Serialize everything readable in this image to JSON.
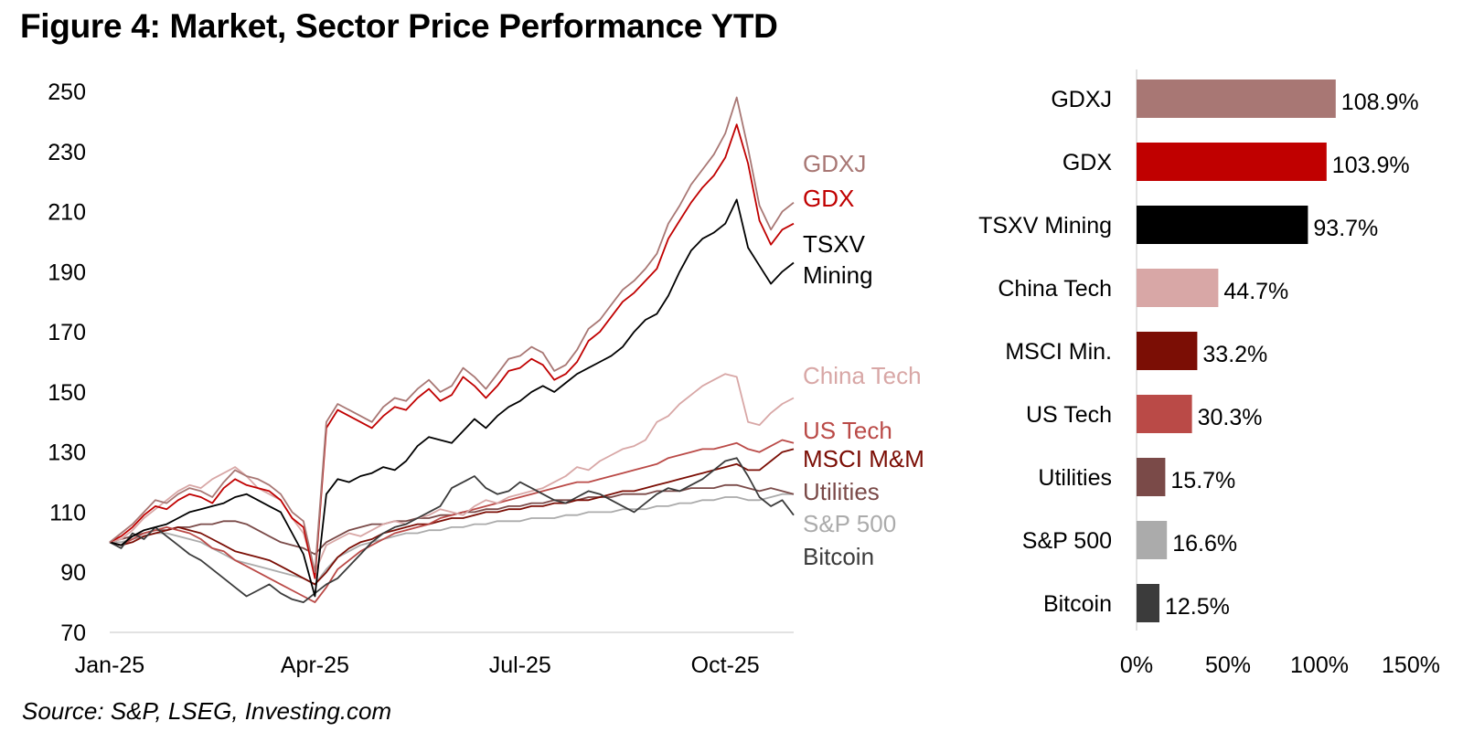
{
  "title": "Figure 4: Market, Sector Price Performance YTD",
  "source": "Source: S&P, LSEG, Investing.com",
  "chart_data": [
    {
      "type": "line",
      "title": "",
      "xlabel": "",
      "ylabel": "",
      "ylim": [
        70,
        250
      ],
      "yticks": [
        70,
        90,
        110,
        130,
        150,
        170,
        190,
        210,
        230,
        250
      ],
      "x_ticks": [
        "Jan-25",
        "Apr-25",
        "Jul-25",
        "Oct-25"
      ],
      "x_tick_index": [
        0,
        18,
        36,
        54
      ],
      "grid": false,
      "series": [
        {
          "name": "GDXJ",
          "label_lines": [
            "GDXJ"
          ],
          "color": "#A87774",
          "values": [
            100,
            103,
            106,
            110,
            114,
            113,
            116,
            118,
            117,
            115,
            120,
            124,
            122,
            121,
            119,
            116,
            110,
            107,
            90,
            140,
            146,
            144,
            142,
            140,
            145,
            148,
            147,
            151,
            154,
            150,
            152,
            158,
            155,
            151,
            156,
            161,
            162,
            165,
            163,
            157,
            159,
            164,
            171,
            174,
            179,
            184,
            187,
            191,
            196,
            206,
            212,
            219,
            224,
            229,
            236,
            248,
            231,
            212,
            204,
            210,
            213
          ]
        },
        {
          "name": "GDX",
          "label_lines": [
            "GDX"
          ],
          "color": "#C00000",
          "values": [
            100,
            102,
            105,
            109,
            112,
            111,
            114,
            116,
            115,
            113,
            118,
            121,
            119,
            118,
            117,
            114,
            108,
            105,
            88,
            138,
            144,
            142,
            140,
            138,
            142,
            145,
            144,
            148,
            151,
            147,
            149,
            155,
            152,
            148,
            152,
            157,
            158,
            161,
            159,
            154,
            156,
            160,
            167,
            170,
            175,
            180,
            183,
            187,
            191,
            201,
            207,
            213,
            218,
            222,
            228,
            239,
            226,
            207,
            199,
            204,
            206
          ]
        },
        {
          "name": "TSXV Mining",
          "label_lines": [
            "TSXV",
            "Mining"
          ],
          "color": "#000000",
          "values": [
            100,
            99,
            102,
            104,
            105,
            106,
            108,
            110,
            111,
            112,
            113,
            115,
            116,
            114,
            112,
            110,
            103,
            96,
            82,
            116,
            121,
            120,
            122,
            123,
            125,
            124,
            127,
            132,
            135,
            134,
            133,
            137,
            141,
            138,
            142,
            145,
            147,
            150,
            152,
            150,
            153,
            156,
            158,
            160,
            162,
            165,
            170,
            174,
            176,
            182,
            190,
            197,
            201,
            203,
            206,
            214,
            198,
            192,
            186,
            190,
            193
          ]
        },
        {
          "name": "China Tech",
          "label_lines": [
            "China Tech"
          ],
          "color": "#D8A7A6",
          "values": [
            100,
            101,
            104,
            108,
            111,
            114,
            117,
            119,
            118,
            121,
            123,
            125,
            122,
            118,
            116,
            114,
            108,
            103,
            90,
            99,
            101,
            103,
            102,
            104,
            106,
            107,
            106,
            108,
            109,
            111,
            110,
            109,
            112,
            114,
            113,
            115,
            116,
            117,
            118,
            120,
            122,
            125,
            124,
            127,
            129,
            131,
            132,
            134,
            140,
            142,
            146,
            149,
            152,
            154,
            156,
            155,
            140,
            139,
            143,
            146,
            148
          ]
        },
        {
          "name": "US Tech",
          "label_lines": [
            "US Tech"
          ],
          "color": "#BA4A47",
          "values": [
            100,
            99,
            101,
            103,
            104,
            105,
            104,
            103,
            101,
            98,
            97,
            94,
            92,
            90,
            88,
            86,
            84,
            82,
            80,
            85,
            91,
            94,
            97,
            99,
            101,
            103,
            104,
            105,
            106,
            108,
            109,
            110,
            111,
            112,
            113,
            114,
            115,
            116,
            117,
            118,
            119,
            120,
            120,
            121,
            122,
            123,
            124,
            125,
            126,
            128,
            129,
            130,
            131,
            131,
            132,
            133,
            131,
            130,
            132,
            134,
            133
          ]
        },
        {
          "name": "MSCI M&M",
          "label_lines": [
            "MSCI M&M"
          ],
          "color": "#7B0E05",
          "values": [
            100,
            99,
            100,
            102,
            103,
            104,
            105,
            104,
            103,
            101,
            99,
            97,
            96,
            95,
            94,
            92,
            90,
            88,
            86,
            90,
            95,
            98,
            100,
            101,
            103,
            104,
            105,
            106,
            106,
            107,
            108,
            108,
            109,
            110,
            110,
            111,
            111,
            112,
            112,
            113,
            113,
            114,
            114,
            115,
            116,
            117,
            117,
            118,
            119,
            120,
            121,
            122,
            123,
            124,
            125,
            126,
            124,
            124,
            127,
            130,
            131
          ]
        },
        {
          "name": "Utilities",
          "label_lines": [
            "Utilities"
          ],
          "color": "#7A4A48",
          "values": [
            100,
            101,
            102,
            103,
            104,
            104,
            105,
            105,
            106,
            106,
            107,
            107,
            106,
            104,
            102,
            100,
            99,
            98,
            96,
            100,
            102,
            104,
            105,
            106,
            106,
            107,
            107,
            108,
            108,
            109,
            109,
            110,
            110,
            111,
            111,
            112,
            112,
            113,
            113,
            114,
            114,
            114,
            115,
            115,
            115,
            116,
            116,
            116,
            117,
            117,
            117,
            118,
            118,
            118,
            119,
            119,
            118,
            117,
            118,
            117,
            116
          ]
        },
        {
          "name": "S&P 500",
          "label_lines": [
            "S&P 500"
          ],
          "color": "#ABABAB",
          "values": [
            100,
            100,
            101,
            102,
            103,
            103,
            102,
            101,
            100,
            98,
            96,
            94,
            93,
            92,
            91,
            90,
            89,
            88,
            86,
            91,
            95,
            97,
            99,
            100,
            101,
            102,
            103,
            103,
            104,
            104,
            105,
            105,
            106,
            106,
            107,
            107,
            107,
            108,
            108,
            108,
            109,
            109,
            110,
            110,
            110,
            111,
            111,
            111,
            112,
            112,
            113,
            113,
            114,
            114,
            115,
            115,
            114,
            114,
            115,
            116,
            116
          ]
        },
        {
          "name": "Bitcoin",
          "label_lines": [
            "Bitcoin"
          ],
          "color": "#3B3B3B",
          "values": [
            100,
            98,
            103,
            101,
            105,
            102,
            99,
            96,
            94,
            91,
            88,
            85,
            82,
            84,
            86,
            83,
            81,
            80,
            83,
            86,
            88,
            92,
            96,
            100,
            103,
            105,
            106,
            108,
            110,
            112,
            118,
            120,
            122,
            118,
            116,
            117,
            120,
            118,
            116,
            114,
            113,
            115,
            117,
            116,
            114,
            112,
            110,
            113,
            116,
            118,
            117,
            119,
            121,
            124,
            127,
            128,
            122,
            115,
            112,
            114,
            109
          ]
        }
      ]
    },
    {
      "type": "bar",
      "orientation": "horizontal",
      "title": "",
      "xlabel": "",
      "ylabel": "",
      "xlim": [
        0,
        150
      ],
      "xticks": [
        0,
        50,
        100,
        150
      ],
      "xtick_labels": [
        "0%",
        "50%",
        "100%",
        "150%"
      ],
      "grid": false,
      "categories": [
        "GDXJ",
        "GDX",
        "TSXV Mining",
        "China Tech",
        "MSCI Min.",
        "US Tech",
        "Utilities",
        "S&P 500",
        "Bitcoin"
      ],
      "values": [
        108.9,
        103.9,
        93.7,
        44.7,
        33.2,
        30.3,
        15.7,
        16.6,
        12.5
      ],
      "value_labels": [
        "108.9%",
        "103.9%",
        "93.7%",
        "44.7%",
        "33.2%",
        "30.3%",
        "15.7%",
        "16.6%",
        "12.5%"
      ],
      "colors": [
        "#A87774",
        "#C00000",
        "#000000",
        "#D8A7A6",
        "#7B0E05",
        "#BA4A47",
        "#7A4A48",
        "#ABABAB",
        "#3B3B3B"
      ]
    }
  ]
}
